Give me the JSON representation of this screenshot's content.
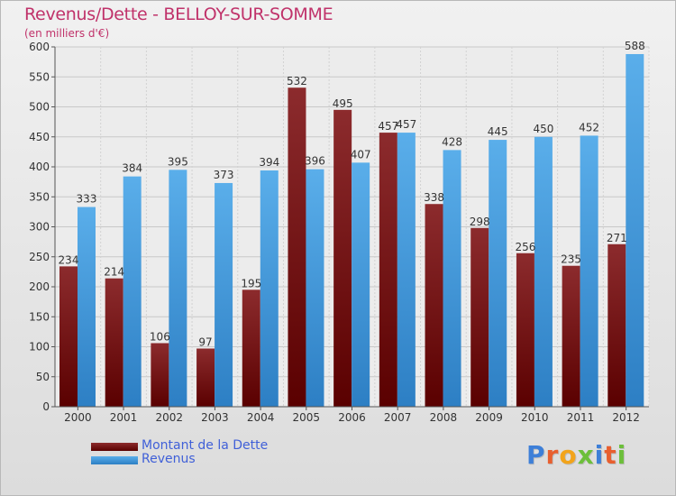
{
  "header": {
    "title": "Revenus/Dette - BELLOY-SUR-SOMME",
    "subtitle": "(en milliers d'€)"
  },
  "colors": {
    "title": "#c0326a",
    "debt_top": "#8c2b2d",
    "debt_bottom": "#5a0000",
    "revenue_top": "#5aaeea",
    "revenue_bottom": "#2d7fc4",
    "legend_text": "#4060d8"
  },
  "chart_data": {
    "type": "bar",
    "categories": [
      "2000",
      "2001",
      "2002",
      "2003",
      "2004",
      "2005",
      "2006",
      "2007",
      "2008",
      "2009",
      "2010",
      "2011",
      "2012"
    ],
    "series": [
      {
        "name": "Montant de la Dette",
        "values": [
          234,
          214,
          106,
          97,
          195,
          532,
          495,
          457,
          338,
          298,
          256,
          235,
          271
        ]
      },
      {
        "name": "Revenus",
        "values": [
          333,
          384,
          395,
          373,
          394,
          396,
          407,
          457,
          428,
          445,
          450,
          452,
          588
        ]
      }
    ],
    "ylim": [
      0,
      600
    ],
    "yticks": [
      0,
      50,
      100,
      150,
      200,
      250,
      300,
      350,
      400,
      450,
      500,
      550,
      600
    ],
    "grid": true,
    "legend_position": "bottom-left"
  },
  "legend": {
    "items": [
      {
        "label": "Montant de la Dette",
        "color_key": "debt"
      },
      {
        "label": "Revenus",
        "color_key": "revenue"
      }
    ]
  },
  "branding": {
    "logo_letters": [
      "P",
      "r",
      "o",
      "x",
      "i",
      "t",
      "i"
    ],
    "logo_colors": [
      "#3d7fd8",
      "#e85f2f",
      "#f2a41b",
      "#6cbf3a",
      "#3d7fd8",
      "#e85f2f",
      "#6cbf3a"
    ]
  }
}
